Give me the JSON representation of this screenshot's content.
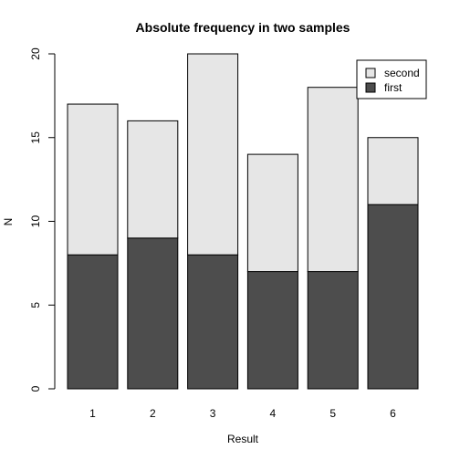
{
  "chart_data": {
    "type": "bar",
    "stacked": true,
    "title": "Absolute frequency in two samples",
    "xlabel": "Result",
    "ylabel": "N",
    "categories": [
      "1",
      "2",
      "3",
      "4",
      "5",
      "6"
    ],
    "ylim": [
      0,
      20
    ],
    "yticks": [
      0,
      5,
      10,
      15,
      20
    ],
    "series": [
      {
        "name": "first",
        "values": [
          8,
          9,
          8,
          7,
          7,
          11
        ],
        "color": "#4d4d4d"
      },
      {
        "name": "second",
        "values": [
          9,
          7,
          12,
          7,
          11,
          4
        ],
        "color": "#e6e6e6"
      }
    ],
    "legend": {
      "placement": "top-right",
      "entries": [
        {
          "label": "second",
          "color": "#e6e6e6"
        },
        {
          "label": "first",
          "color": "#4d4d4d"
        }
      ]
    },
    "grid": false
  }
}
